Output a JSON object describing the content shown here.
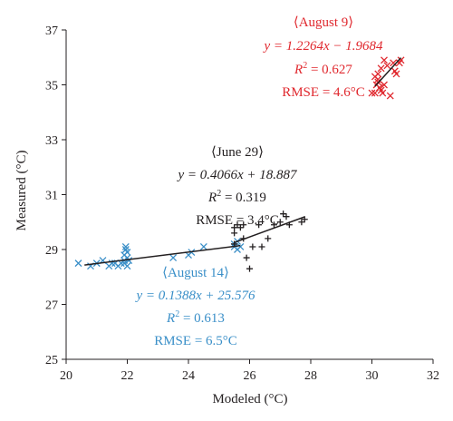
{
  "chart_data": {
    "type": "scatter",
    "xlabel": "Modeled (°C)",
    "ylabel": "Measured (°C)",
    "xlim": [
      20,
      32
    ],
    "ylim": [
      25,
      37
    ],
    "xticks": [
      "20",
      "22",
      "24",
      "26",
      "28",
      "30",
      "32"
    ],
    "yticks": [
      "25",
      "27",
      "29",
      "31",
      "33",
      "35",
      "37"
    ],
    "grid": false,
    "legend": "none",
    "series": [
      {
        "name": "August 14",
        "marker": "x",
        "color": "#3a8fc8",
        "points": [
          [
            20.4,
            28.5
          ],
          [
            20.8,
            28.4
          ],
          [
            21.0,
            28.5
          ],
          [
            21.2,
            28.6
          ],
          [
            21.4,
            28.4
          ],
          [
            21.5,
            28.5
          ],
          [
            21.6,
            28.5
          ],
          [
            21.7,
            28.4
          ],
          [
            21.8,
            28.5
          ],
          [
            21.9,
            28.6
          ],
          [
            21.9,
            28.8
          ],
          [
            21.95,
            29.0
          ],
          [
            21.95,
            29.1
          ],
          [
            22.0,
            28.7
          ],
          [
            22.0,
            28.9
          ],
          [
            22.0,
            28.4
          ],
          [
            21.9,
            28.5
          ],
          [
            22.05,
            28.6
          ],
          [
            23.5,
            28.7
          ],
          [
            24.0,
            28.8
          ],
          [
            24.1,
            28.9
          ],
          [
            24.5,
            29.1
          ],
          [
            25.5,
            29.2
          ],
          [
            25.6,
            29.0
          ],
          [
            25.7,
            29.1
          ],
          [
            25.6,
            29.3
          ],
          [
            25.5,
            29.1
          ]
        ],
        "trendline": {
          "equation": "y = 0.1388x + 25.576",
          "r2": "R² = 0.613",
          "rmse": "RMSE = 6.5°C",
          "x_range": [
            20.6,
            25.7
          ]
        }
      },
      {
        "name": "June 29",
        "marker": "+",
        "color": "#231f20",
        "points": [
          [
            25.5,
            29.8
          ],
          [
            25.6,
            29.9
          ],
          [
            25.7,
            29.8
          ],
          [
            25.8,
            29.9
          ],
          [
            25.8,
            29.4
          ],
          [
            25.9,
            28.7
          ],
          [
            26.0,
            28.3
          ],
          [
            26.1,
            29.1
          ],
          [
            26.3,
            29.9
          ],
          [
            26.4,
            29.1
          ],
          [
            26.6,
            29.4
          ],
          [
            26.8,
            29.9
          ],
          [
            27.0,
            30.0
          ],
          [
            27.1,
            30.3
          ],
          [
            27.2,
            30.2
          ],
          [
            27.3,
            29.9
          ],
          [
            27.7,
            30.0
          ],
          [
            27.8,
            30.1
          ],
          [
            25.5,
            29.2
          ],
          [
            25.5,
            29.6
          ]
        ],
        "trendline": {
          "equation": "y = 0.4066x + 18.887",
          "r2": "R² = 0.319",
          "rmse": "RMSE = 3.4°C",
          "x_range": [
            25.5,
            27.8
          ]
        }
      },
      {
        "name": "August 9",
        "marker": "x",
        "color": "#e0282e",
        "points": [
          [
            30.0,
            34.7
          ],
          [
            30.1,
            34.7
          ],
          [
            30.15,
            35.0
          ],
          [
            30.2,
            35.2
          ],
          [
            30.2,
            35.4
          ],
          [
            30.25,
            34.9
          ],
          [
            30.3,
            35.6
          ],
          [
            30.3,
            34.8
          ],
          [
            30.35,
            34.7
          ],
          [
            30.4,
            35.9
          ],
          [
            30.5,
            35.7
          ],
          [
            30.6,
            34.6
          ],
          [
            30.7,
            35.8
          ],
          [
            30.75,
            35.5
          ],
          [
            30.8,
            35.4
          ],
          [
            30.9,
            35.8
          ],
          [
            30.95,
            35.9
          ],
          [
            30.1,
            35.3
          ],
          [
            30.2,
            35.1
          ],
          [
            30.4,
            35.0
          ]
        ],
        "trendline": {
          "equation": "y = 1.2264x − 1.9684",
          "r2": "R² = 0.627",
          "rmse": "RMSE = 4.6°C",
          "x_range": [
            30.1,
            30.95
          ]
        }
      }
    ],
    "annotations": {
      "aug9": {
        "title": "⟨August 9⟩",
        "eq": "y = 1.2264x − 1.9684",
        "r2_label": "R",
        "r2_sup": "2",
        "r2_val": " = 0.627",
        "rmse": "RMSE = 4.6°C"
      },
      "jun29": {
        "title": "⟨June 29⟩",
        "eq": "y = 0.4066x + 18.887",
        "r2_label": "R",
        "r2_sup": "2",
        "r2_val": " = 0.319",
        "rmse": "RMSE = 3.4°C"
      },
      "aug14": {
        "title": "⟨August 14⟩",
        "eq": "y = 0.1388x + 25.576",
        "r2_label": "R",
        "r2_sup": "2",
        "r2_val": " = 0.613",
        "rmse": "RMSE = 6.5°C"
      }
    }
  }
}
